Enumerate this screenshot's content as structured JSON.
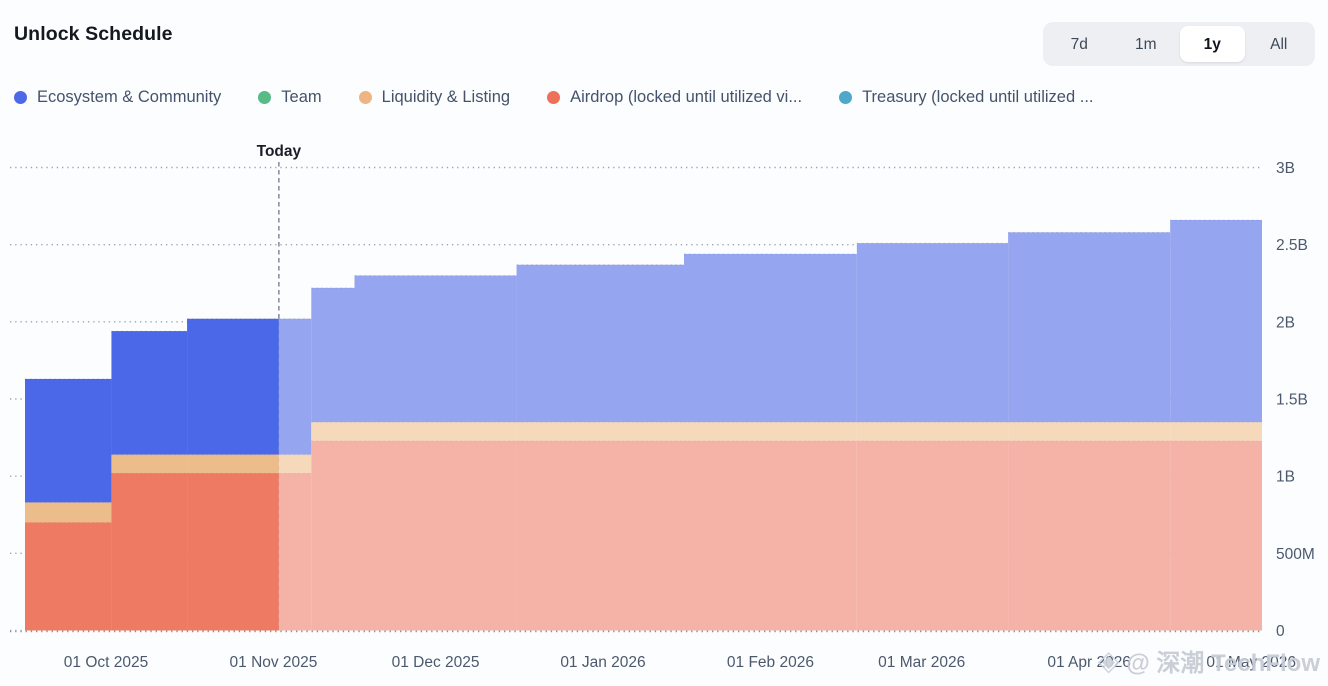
{
  "header": {
    "title": "Unlock Schedule"
  },
  "range_selector": {
    "options": [
      "7d",
      "1m",
      "1y",
      "All"
    ],
    "selected": "1y"
  },
  "legend": [
    {
      "key": "ecosystem",
      "label": "Ecosystem & Community",
      "color": "#4c69e8"
    },
    {
      "key": "team",
      "label": "Team",
      "color": "#57bb86"
    },
    {
      "key": "liquidity",
      "label": "Liquidity & Listing",
      "color": "#edb583"
    },
    {
      "key": "airdrop",
      "label": "Airdrop (locked until utilized vi...",
      "color": "#ed7159"
    },
    {
      "key": "treasury",
      "label": "Treasury (locked until utilized ...",
      "color": "#4fa8c7"
    }
  ],
  "watermark": {
    "icon": "diamond-icon",
    "icon_glyph": "◈",
    "text": "@ 深潮 TechFlow"
  },
  "chart_data": {
    "type": "area",
    "subtype": "stacked-step-area",
    "title": "Unlock Schedule",
    "style_note": "segments before today are solid; segments after today are faded",
    "grid": "dotted horizontal gridlines",
    "legend_position": "top",
    "y_axis_side": "right",
    "unit": "tokens",
    "values_unit": "billions",
    "ylim_billions": [
      0,
      3
    ],
    "x_domain": [
      "2025-09-16",
      "2026-05-03"
    ],
    "today": {
      "label": "Today",
      "date": "2025-11-02"
    },
    "yticks": [
      {
        "value": 0,
        "label": "0"
      },
      {
        "value": 0.5,
        "label": "500M"
      },
      {
        "value": 1,
        "label": "1B"
      },
      {
        "value": 1.5,
        "label": "1.5B"
      },
      {
        "value": 2,
        "label": "2B"
      },
      {
        "value": 2.5,
        "label": "2.5B"
      },
      {
        "value": 3,
        "label": "3B"
      }
    ],
    "xticks": [
      {
        "date": "2025-10-01",
        "label": "01 Oct 2025"
      },
      {
        "date": "2025-11-01",
        "label": "01 Nov 2025"
      },
      {
        "date": "2025-12-01",
        "label": "01 Dec 2025"
      },
      {
        "date": "2026-01-01",
        "label": "01 Jan 2026"
      },
      {
        "date": "2026-02-01",
        "label": "01 Feb 2026"
      },
      {
        "date": "2026-03-01",
        "label": "01 Mar 2026"
      },
      {
        "date": "2026-04-01",
        "label": "01 Apr 2026"
      },
      {
        "date": "2026-05-01",
        "label": "01 May 2026"
      }
    ],
    "layers": [
      {
        "key": "airdrop",
        "name": "Airdrop (locked until utilized)",
        "solid": "#ee7a63",
        "faded": "#f5b2a6"
      },
      {
        "key": "liquidity",
        "name": "Liquidity & Listing",
        "solid": "#ecbc8a",
        "faded": "#f6d9ba"
      },
      {
        "key": "ecosystem",
        "name": "Ecosystem & Community",
        "solid": "#4a68e7",
        "faded": "#96a5f0"
      },
      {
        "key": "team",
        "name": "Team",
        "solid": "#57bb86",
        "faded": "#abdcc4"
      },
      {
        "key": "treasury",
        "name": "Treasury (locked until utilized)",
        "solid": "#4fa8c7",
        "faded": "#a8d4e3"
      }
    ],
    "segments": [
      {
        "from": "2025-09-16",
        "to": "2025-10-02",
        "phase": "past",
        "values": {
          "airdrop": 0.7,
          "liquidity": 0.13,
          "ecosystem": 0.8,
          "team": 0,
          "treasury": 0
        }
      },
      {
        "from": "2025-10-02",
        "to": "2025-10-16",
        "phase": "past",
        "values": {
          "airdrop": 1.02,
          "liquidity": 0.12,
          "ecosystem": 0.8,
          "team": 0,
          "treasury": 0
        }
      },
      {
        "from": "2025-10-16",
        "to": "2025-11-02",
        "phase": "past",
        "values": {
          "airdrop": 1.02,
          "liquidity": 0.12,
          "ecosystem": 0.88,
          "team": 0,
          "treasury": 0
        }
      },
      {
        "from": "2025-11-02",
        "to": "2025-11-08",
        "phase": "future",
        "values": {
          "airdrop": 1.02,
          "liquidity": 0.12,
          "ecosystem": 0.88,
          "team": 0,
          "treasury": 0
        }
      },
      {
        "from": "2025-11-08",
        "to": "2025-11-16",
        "phase": "future",
        "values": {
          "airdrop": 1.23,
          "liquidity": 0.12,
          "ecosystem": 0.87,
          "team": 0,
          "treasury": 0
        }
      },
      {
        "from": "2025-11-16",
        "to": "2025-12-16",
        "phase": "future",
        "values": {
          "airdrop": 1.23,
          "liquidity": 0.12,
          "ecosystem": 0.95,
          "team": 0,
          "treasury": 0
        }
      },
      {
        "from": "2025-12-16",
        "to": "2026-01-16",
        "phase": "future",
        "values": {
          "airdrop": 1.23,
          "liquidity": 0.12,
          "ecosystem": 1.02,
          "team": 0,
          "treasury": 0
        }
      },
      {
        "from": "2026-01-16",
        "to": "2026-02-17",
        "phase": "future",
        "values": {
          "airdrop": 1.23,
          "liquidity": 0.12,
          "ecosystem": 1.09,
          "team": 0,
          "treasury": 0
        }
      },
      {
        "from": "2026-02-17",
        "to": "2026-03-17",
        "phase": "future",
        "values": {
          "airdrop": 1.23,
          "liquidity": 0.12,
          "ecosystem": 1.16,
          "team": 0,
          "treasury": 0
        }
      },
      {
        "from": "2026-03-17",
        "to": "2026-04-16",
        "phase": "future",
        "values": {
          "airdrop": 1.23,
          "liquidity": 0.12,
          "ecosystem": 1.23,
          "team": 0,
          "treasury": 0
        }
      },
      {
        "from": "2026-04-16",
        "to": "2026-05-03",
        "phase": "future",
        "values": {
          "airdrop": 1.23,
          "liquidity": 0.12,
          "ecosystem": 1.31,
          "team": 0,
          "treasury": 0
        }
      }
    ]
  }
}
